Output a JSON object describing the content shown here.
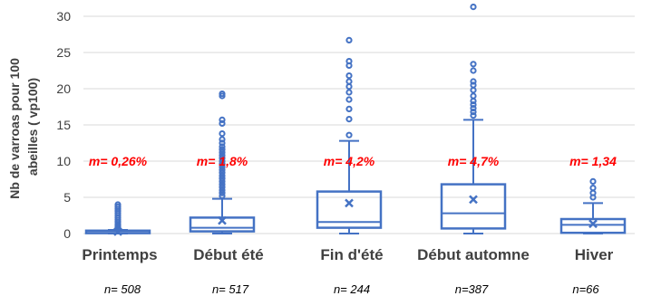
{
  "chart_data": {
    "type": "box",
    "ylabel_lines": [
      "Nb de varroas pour 100",
      "abeilles  ( vp100)"
    ],
    "ylim": [
      0,
      30
    ],
    "yticks": [
      0,
      5,
      10,
      15,
      20,
      25,
      30
    ],
    "grid": true,
    "categories": [
      "Printemps",
      "Début été",
      "Fin d'été",
      "Début automne",
      "Hiver"
    ],
    "boxes": [
      {
        "min": 0,
        "q1": 0.05,
        "median": 0.1,
        "q3": 0.4,
        "max": 0.5,
        "mean": 0.26,
        "outliers": [
          0.7,
          0.9,
          1.1,
          1.3,
          1.6,
          1.9,
          2.2,
          2.5,
          2.8,
          3.1,
          3.4,
          3.7,
          4.0
        ]
      },
      {
        "min": 0,
        "q1": 0.3,
        "median": 0.8,
        "q3": 2.2,
        "max": 4.8,
        "mean": 1.8,
        "outliers": [
          5.2,
          5.6,
          6.0,
          6.4,
          6.8,
          7.2,
          7.6,
          8.0,
          8.4,
          8.8,
          9.2,
          9.6,
          10.0,
          10.4,
          10.8,
          11.2,
          11.6,
          12.0,
          12.5,
          13.0,
          13.8,
          15.2,
          15.7,
          19.0,
          19.3
        ]
      },
      {
        "min": 0,
        "q1": 0.8,
        "median": 1.6,
        "q3": 5.8,
        "max": 12.8,
        "mean": 4.2,
        "outliers": [
          13.6,
          15.8,
          17.2,
          18.5,
          19.5,
          20.3,
          21.0,
          21.8,
          23.2,
          23.8,
          26.7
        ]
      },
      {
        "min": 0,
        "q1": 0.7,
        "median": 2.8,
        "q3": 6.8,
        "max": 15.7,
        "mean": 4.7,
        "outliers": [
          16.3,
          16.8,
          17.3,
          17.8,
          18.3,
          19.0,
          19.8,
          20.5,
          21.0,
          22.5,
          23.4,
          31.3
        ]
      },
      {
        "min": 0,
        "q1": 0.1,
        "median": 1.2,
        "q3": 2.0,
        "max": 4.2,
        "mean": 1.34,
        "outliers": [
          5.0,
          5.6,
          6.3,
          7.2
        ]
      }
    ],
    "mean_labels": [
      "m= 0,26%",
      "m= 1,8%",
      "m= 4,2%",
      "m= 4,7%",
      "m= 1,34"
    ],
    "n_labels": [
      "n= 508",
      "n= 517",
      "n= 244",
      "n=387",
      "n=66"
    ],
    "colors": {
      "box": "#4472c4",
      "mean_text": "#ff0000",
      "grid": "#d9d9d9",
      "axis_text": "#404040"
    }
  }
}
